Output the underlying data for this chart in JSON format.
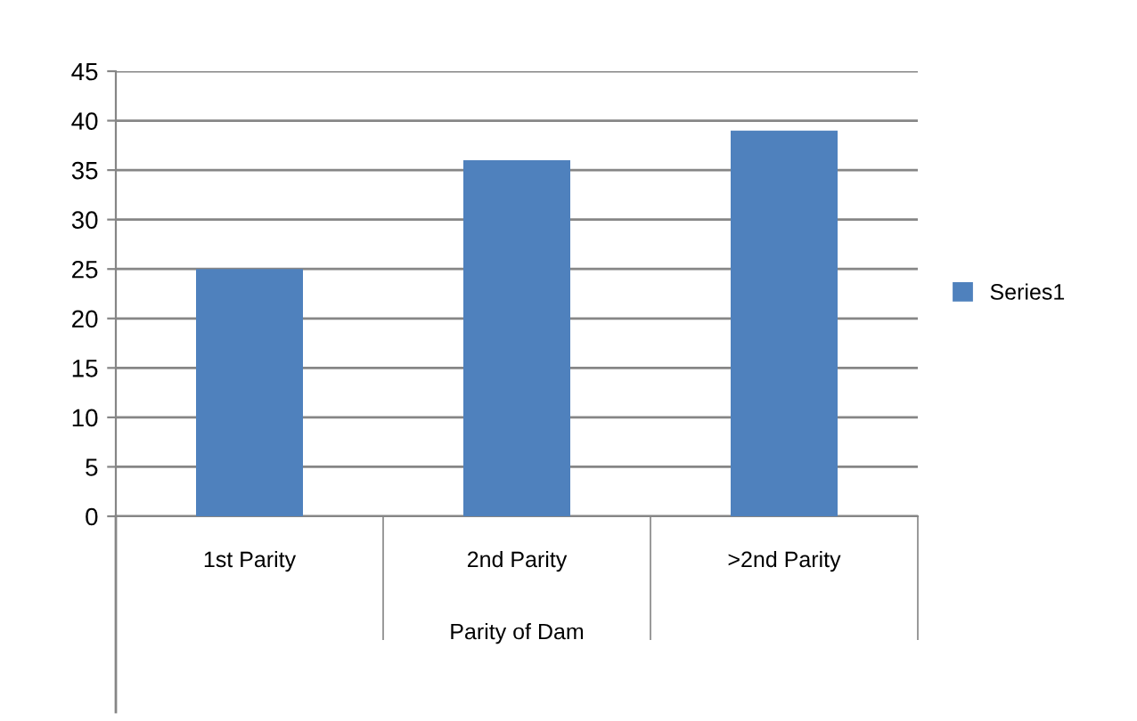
{
  "chart_data": {
    "type": "bar",
    "xlabel": "Parity of Dam",
    "categories": [
      "1st Parity",
      "2nd Parity",
      ">2nd Parity"
    ],
    "series": [
      {
        "name": "Series1",
        "color": "#4f81bd",
        "values": [
          25,
          36,
          39
        ]
      }
    ],
    "ylim": [
      0,
      45
    ],
    "yticks": [
      0,
      5,
      10,
      15,
      20,
      25,
      30,
      35,
      40,
      45
    ],
    "grid": "y",
    "legend": "right"
  }
}
